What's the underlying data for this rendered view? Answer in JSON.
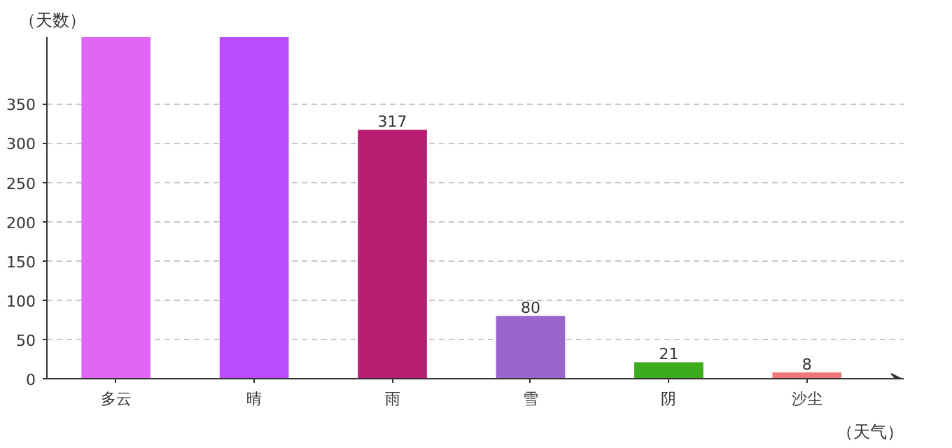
{
  "chart_data": {
    "type": "bar",
    "ylabel": "（天数）",
    "xlabel": "（天气）",
    "categories": [
      "多云",
      "晴",
      "雨",
      "雪",
      "阴",
      "沙尘"
    ],
    "values": [
      435,
      435,
      317,
      80,
      21,
      8
    ],
    "value_labels": [
      null,
      null,
      "317",
      "80",
      "21",
      "8"
    ],
    "colors": [
      "#e066f5",
      "#b94dff",
      "#b81f72",
      "#9966cc",
      "#3cab1e",
      "#f07878"
    ],
    "ylim": [
      0,
      435
    ],
    "yticks": [
      0,
      50,
      100,
      150,
      200,
      250,
      300,
      350
    ],
    "grid": "y"
  }
}
